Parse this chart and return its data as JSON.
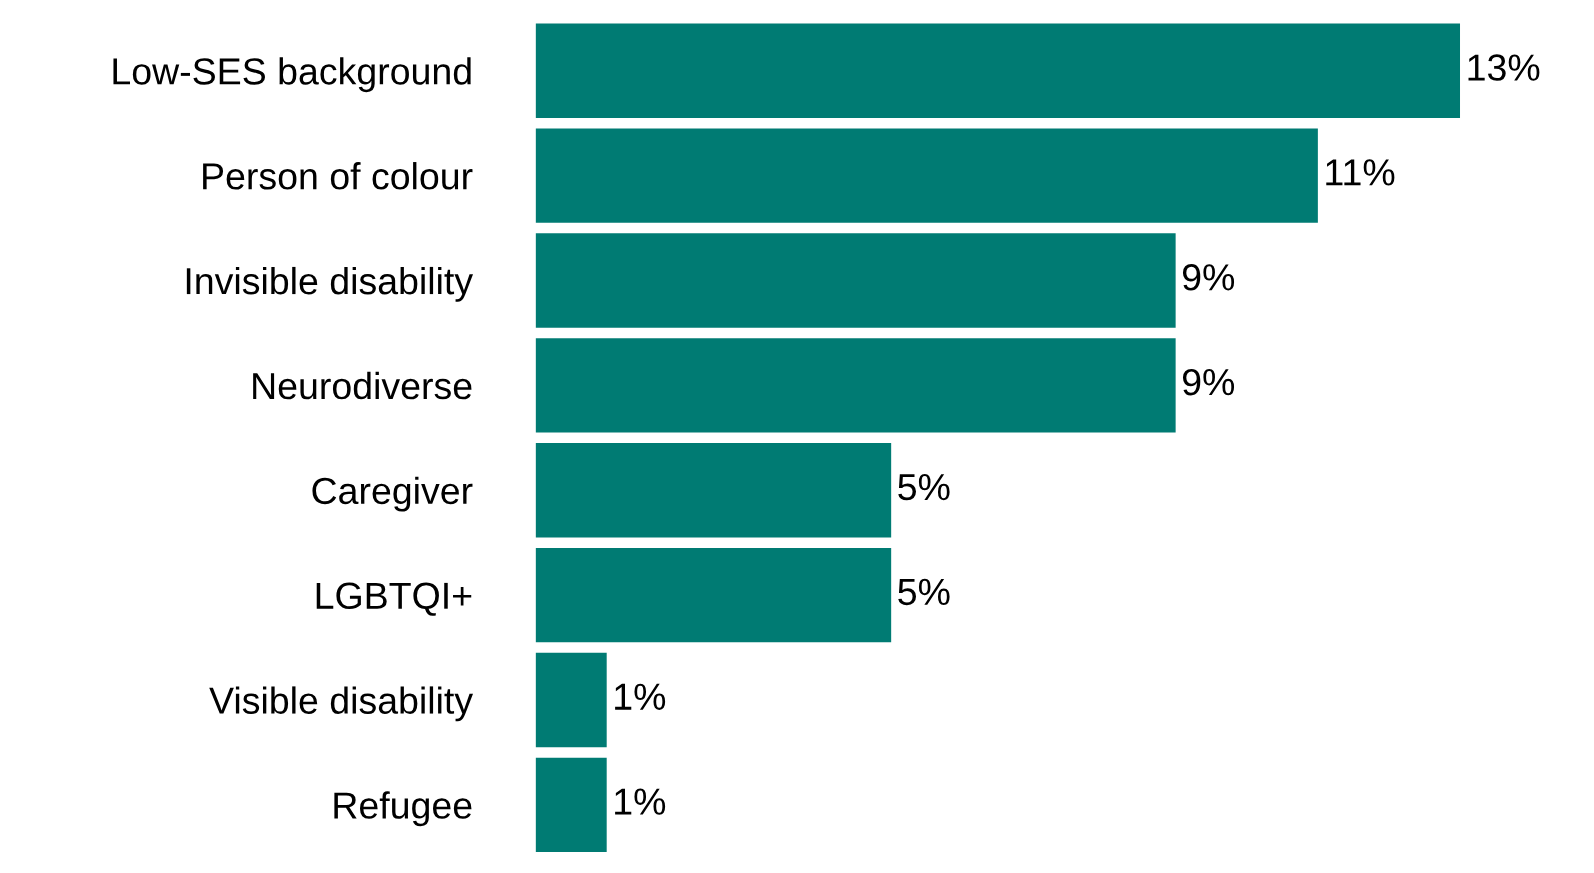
{
  "chart_data": {
    "type": "bar",
    "orientation": "horizontal",
    "categories": [
      "Low-SES background",
      "Person of colour",
      "Invisible disability",
      "Neurodiverse",
      "Caregiver",
      "LGBTQI+",
      "Visible disability",
      "Refugee"
    ],
    "values": [
      13,
      11,
      9,
      9,
      5,
      5,
      1,
      1
    ],
    "value_labels": [
      "13%",
      "11%",
      "9%",
      "9%",
      "5%",
      "5%",
      "1%",
      "1%"
    ],
    "color": "#007b73",
    "grid": false,
    "legend": false,
    "tick_labels": "y"
  }
}
